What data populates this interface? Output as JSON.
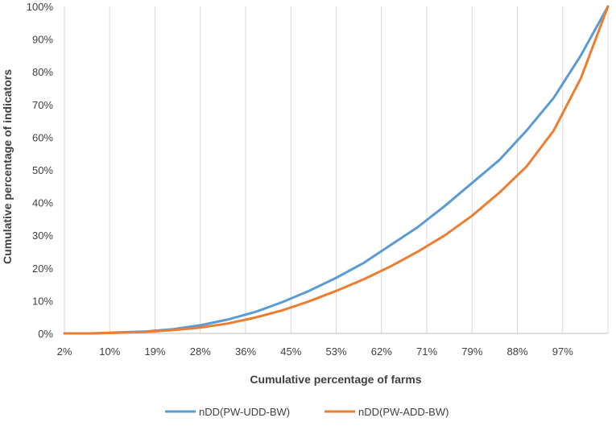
{
  "chart_data": {
    "type": "line",
    "title": "",
    "xlabel": "Cumulative percentage of farms",
    "ylabel": "Cumulative percentage of indicators",
    "x_tick_labels": [
      "2%",
      "10%",
      "19%",
      "28%",
      "36%",
      "45%",
      "53%",
      "62%",
      "71%",
      "79%",
      "88%",
      "97%"
    ],
    "y_tick_labels": [
      "0%",
      "10%",
      "20%",
      "30%",
      "40%",
      "50%",
      "60%",
      "70%",
      "80%",
      "90%",
      "100%"
    ],
    "xlim": [
      0,
      100
    ],
    "ylim": [
      0,
      100
    ],
    "grid": "vertical",
    "legend_position": "bottom",
    "series": [
      {
        "name": "nDD(PW-UDD-BW)",
        "color": "#5B9BD5",
        "x": [
          0,
          5,
          10,
          15,
          20,
          25,
          30,
          35,
          40,
          45,
          50,
          55,
          60,
          65,
          70,
          75,
          80,
          85,
          90,
          95,
          100
        ],
        "y": [
          0,
          0,
          0.3,
          0.6,
          1.3,
          2.5,
          4.2,
          6.5,
          9.5,
          13,
          17,
          21.5,
          27,
          32.5,
          39,
          46,
          53,
          62,
          72,
          85,
          100
        ]
      },
      {
        "name": "nDD(PW-ADD-BW)",
        "color": "#ED7D31",
        "x": [
          0,
          5,
          10,
          15,
          20,
          25,
          30,
          35,
          40,
          45,
          50,
          55,
          60,
          65,
          70,
          75,
          80,
          85,
          90,
          95,
          100
        ],
        "y": [
          0,
          0,
          0.2,
          0.5,
          1,
          1.8,
          3,
          4.8,
          7,
          9.8,
          13,
          16.5,
          20.5,
          25,
          30,
          36,
          43,
          51,
          62,
          78,
          100
        ]
      }
    ]
  }
}
